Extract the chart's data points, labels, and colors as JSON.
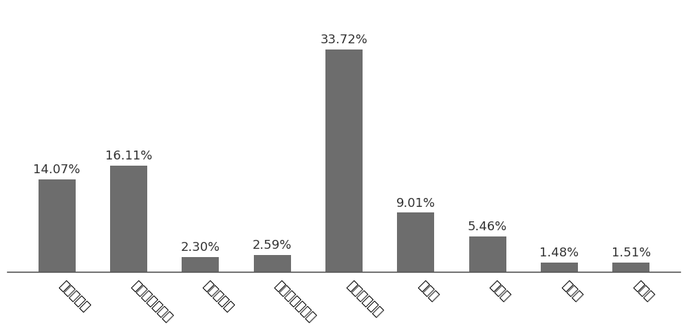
{
  "categories": [
    "液力减速器",
    "转向液力偶合器",
    "液力变矩器",
    "风扇液力偶合器",
    "行星变速机构",
    "泵马达",
    "动密封",
    "前传动",
    "汇流排"
  ],
  "values": [
    14.07,
    16.11,
    2.3,
    2.59,
    33.72,
    9.01,
    5.46,
    1.48,
    1.51
  ],
  "labels": [
    "14.07%",
    "16.11%",
    "2.30%",
    "2.59%",
    "33.72%",
    "9.01%",
    "5.46%",
    "1.48%",
    "1.51%"
  ],
  "bar_color": "#6d6d6d",
  "background_color": "#ffffff",
  "ylim": [
    0,
    40
  ],
  "label_fontsize": 13,
  "tick_fontsize": 13,
  "label_color": "#333333",
  "spine_color": "#555555",
  "bar_width": 0.52,
  "rotation": -45
}
